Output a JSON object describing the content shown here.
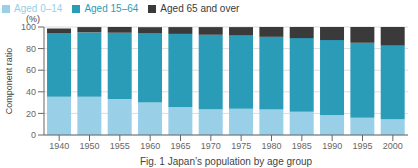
{
  "chart_data": {
    "type": "bar",
    "stacked": true,
    "categories": [
      "1940",
      "1950",
      "1955",
      "1960",
      "1965",
      "1970",
      "1975",
      "1980",
      "1985",
      "1990",
      "1995",
      "2000"
    ],
    "series": [
      {
        "name": "Aged 0–14",
        "color": "#9ACFE8",
        "values": [
          35.4,
          35.4,
          33.4,
          30.0,
          25.6,
          23.9,
          24.3,
          23.5,
          21.5,
          18.2,
          15.9,
          14.6
        ]
      },
      {
        "name": "Aged 15–64",
        "color": "#2B9CB8",
        "values": [
          58.5,
          59.6,
          61.3,
          64.1,
          68.0,
          68.9,
          67.7,
          67.4,
          68.2,
          69.7,
          69.5,
          68.1
        ]
      },
      {
        "name": "Aged 65 and over",
        "color": "#3A3A3A",
        "values": [
          4.8,
          4.9,
          5.3,
          5.7,
          6.3,
          7.1,
          7.9,
          9.1,
          10.3,
          12.1,
          14.6,
          17.3
        ]
      }
    ],
    "ylabel": "Component ratio",
    "xlabel": "Fig. 1  Japan’s population by age group",
    "annotations": [
      "(%)"
    ],
    "ylim": [
      0,
      100
    ],
    "yticks": [
      0,
      20,
      40,
      60,
      80,
      100
    ],
    "grid": true,
    "legend": "upper left"
  }
}
